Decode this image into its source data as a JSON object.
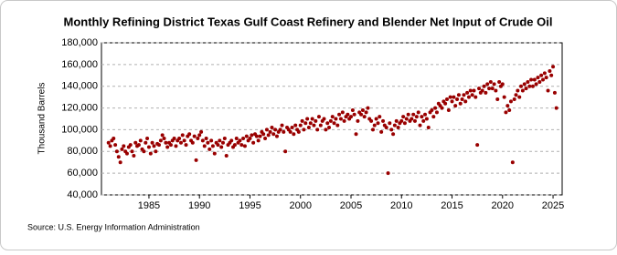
{
  "chart_data": {
    "type": "scatter",
    "title": "Monthly Refining District Texas Gulf Coast Refinery and Blender Net Input of Crude Oil",
    "y_label": "Thousand Barrels",
    "source": "Source: U.S. Energy Information Administration",
    "color": "#990000",
    "grid": true,
    "xlim": [
      1980.3,
      2025.9
    ],
    "xticks": [
      1985,
      1990,
      1995,
      2000,
      2005,
      2010,
      2015,
      2020,
      2025
    ],
    "ylim": [
      40000,
      180000
    ],
    "yticks": [
      {
        "value": 40000,
        "label": "40,000"
      },
      {
        "value": 60000,
        "label": "60,000"
      },
      {
        "value": 80000,
        "label": "80,000"
      },
      {
        "value": 100000,
        "label": "100,000"
      },
      {
        "value": 120000,
        "label": "120,000"
      },
      {
        "value": 140000,
        "label": "140,000"
      },
      {
        "value": 160000,
        "label": "160,000"
      },
      {
        "value": 180000,
        "label": "180,000"
      }
    ],
    "x": [
      1981,
      1981.17,
      1981.33,
      1981.5,
      1981.67,
      1981.83,
      1982,
      1982.17,
      1982.33,
      1982.5,
      1982.67,
      1982.83,
      1983,
      1983.17,
      1983.33,
      1983.5,
      1983.67,
      1983.83,
      1984,
      1984.17,
      1984.33,
      1984.5,
      1984.67,
      1984.83,
      1985,
      1985.17,
      1985.33,
      1985.5,
      1985.67,
      1985.83,
      1986,
      1986.17,
      1986.33,
      1986.5,
      1986.67,
      1986.83,
      1987,
      1987.17,
      1987.33,
      1987.5,
      1987.67,
      1987.83,
      1988,
      1988.17,
      1988.33,
      1988.5,
      1988.67,
      1988.83,
      1989,
      1989.17,
      1989.33,
      1989.5,
      1989.67,
      1989.83,
      1990,
      1990.17,
      1990.33,
      1990.5,
      1990.67,
      1990.83,
      1991,
      1991.17,
      1991.33,
      1991.5,
      1991.67,
      1991.83,
      1992,
      1992.17,
      1992.33,
      1992.5,
      1992.67,
      1992.83,
      1993,
      1993.17,
      1993.33,
      1993.5,
      1993.67,
      1993.83,
      1994,
      1994.17,
      1994.33,
      1994.5,
      1994.67,
      1994.83,
      1995,
      1995.17,
      1995.33,
      1995.5,
      1995.67,
      1995.83,
      1996,
      1996.17,
      1996.33,
      1996.5,
      1996.67,
      1996.83,
      1997,
      1997.17,
      1997.33,
      1997.5,
      1997.67,
      1997.83,
      1998,
      1998.17,
      1998.33,
      1998.5,
      1998.67,
      1998.83,
      1999,
      1999.17,
      1999.33,
      1999.5,
      1999.67,
      1999.83,
      2000,
      2000.17,
      2000.33,
      2000.5,
      2000.67,
      2000.83,
      2001,
      2001.17,
      2001.33,
      2001.5,
      2001.67,
      2001.83,
      2002,
      2002.17,
      2002.33,
      2002.5,
      2002.67,
      2002.83,
      2003,
      2003.17,
      2003.33,
      2003.5,
      2003.67,
      2003.83,
      2004,
      2004.17,
      2004.33,
      2004.5,
      2004.67,
      2004.83,
      2005,
      2005.17,
      2005.33,
      2005.5,
      2005.67,
      2005.83,
      2006,
      2006.17,
      2006.33,
      2006.5,
      2006.67,
      2006.83,
      2007,
      2007.17,
      2007.33,
      2007.5,
      2007.67,
      2007.83,
      2008,
      2008.17,
      2008.33,
      2008.5,
      2008.67,
      2008.83,
      2009,
      2009.17,
      2009.33,
      2009.5,
      2009.67,
      2009.83,
      2010,
      2010.17,
      2010.33,
      2010.5,
      2010.67,
      2010.83,
      2011,
      2011.17,
      2011.33,
      2011.5,
      2011.67,
      2011.83,
      2012,
      2012.17,
      2012.33,
      2012.5,
      2012.67,
      2012.83,
      2013,
      2013.17,
      2013.33,
      2013.5,
      2013.67,
      2013.83,
      2014,
      2014.17,
      2014.33,
      2014.5,
      2014.67,
      2014.83,
      2015,
      2015.17,
      2015.33,
      2015.5,
      2015.67,
      2015.83,
      2016,
      2016.17,
      2016.33,
      2016.5,
      2016.67,
      2016.83,
      2017,
      2017.17,
      2017.33,
      2017.5,
      2017.67,
      2017.83,
      2018,
      2018.17,
      2018.33,
      2018.5,
      2018.67,
      2018.83,
      2019,
      2019.17,
      2019.33,
      2019.5,
      2019.67,
      2019.83,
      2020,
      2020.17,
      2020.33,
      2020.5,
      2020.67,
      2020.83,
      2021,
      2021.17,
      2021.33,
      2021.5,
      2021.67,
      2021.83,
      2022,
      2022.17,
      2022.33,
      2022.5,
      2022.67,
      2022.83,
      2023,
      2023.17,
      2023.33,
      2023.5,
      2023.67,
      2023.83,
      2024,
      2024.17,
      2024.33,
      2024.5,
      2024.67,
      2024.83,
      2025,
      2025.17,
      2025.33
    ],
    "values": [
      88000,
      85000,
      90000,
      92000,
      86000,
      80000,
      75000,
      70000,
      82000,
      85000,
      80000,
      78000,
      84000,
      86000,
      80000,
      76000,
      88000,
      85000,
      86000,
      90000,
      82000,
      80000,
      88000,
      92000,
      84000,
      78000,
      88000,
      85000,
      80000,
      87000,
      86000,
      90000,
      95000,
      92000,
      88000,
      84000,
      88000,
      86000,
      90000,
      92000,
      85000,
      90000,
      92000,
      88000,
      95000,
      90000,
      86000,
      94000,
      96000,
      90000,
      88000,
      94000,
      72000,
      92000,
      95000,
      98000,
      90000,
      85000,
      92000,
      88000,
      82000,
      90000,
      85000,
      78000,
      88000,
      86000,
      90000,
      84000,
      88000,
      92000,
      76000,
      86000,
      88000,
      90000,
      84000,
      86000,
      92000,
      88000,
      90000,
      86000,
      92000,
      85000,
      94000,
      90000,
      92000,
      95000,
      88000,
      96000,
      94000,
      90000,
      94000,
      98000,
      96000,
      92000,
      100000,
      95000,
      98000,
      102000,
      96000,
      100000,
      94000,
      98000,
      100000,
      104000,
      98000,
      80000,
      102000,
      100000,
      98000,
      102000,
      96000,
      104000,
      100000,
      98000,
      104000,
      108000,
      100000,
      106000,
      110000,
      102000,
      106000,
      110000,
      104000,
      108000,
      100000,
      112000,
      104000,
      108000,
      110000,
      100000,
      106000,
      102000,
      108000,
      112000,
      106000,
      110000,
      104000,
      114000,
      110000,
      116000,
      108000,
      112000,
      114000,
      110000,
      112000,
      118000,
      114000,
      96000,
      108000,
      116000,
      114000,
      118000,
      112000,
      116000,
      120000,
      110000,
      108000,
      100000,
      104000,
      110000,
      106000,
      112000,
      98000,
      108000,
      104000,
      102000,
      60000,
      106000,
      100000,
      96000,
      104000,
      108000,
      102000,
      106000,
      108000,
      112000,
      106000,
      110000,
      114000,
      108000,
      110000,
      114000,
      108000,
      112000,
      116000,
      104000,
      112000,
      108000,
      114000,
      110000,
      102000,
      116000,
      118000,
      112000,
      120000,
      116000,
      124000,
      122000,
      120000,
      126000,
      124000,
      128000,
      118000,
      130000,
      126000,
      130000,
      122000,
      128000,
      132000,
      124000,
      128000,
      132000,
      126000,
      134000,
      130000,
      136000,
      132000,
      136000,
      130000,
      86000,
      138000,
      134000,
      136000,
      140000,
      134000,
      142000,
      138000,
      144000,
      138000,
      142000,
      136000,
      128000,
      144000,
      140000,
      142000,
      130000,
      116000,
      122000,
      118000,
      126000,
      70000,
      128000,
      132000,
      136000,
      130000,
      140000,
      136000,
      142000,
      138000,
      144000,
      140000,
      146000,
      140000,
      146000,
      142000,
      148000,
      144000,
      150000,
      146000,
      152000,
      148000,
      136000,
      154000,
      150000,
      158000,
      134000,
      120000
    ]
  }
}
